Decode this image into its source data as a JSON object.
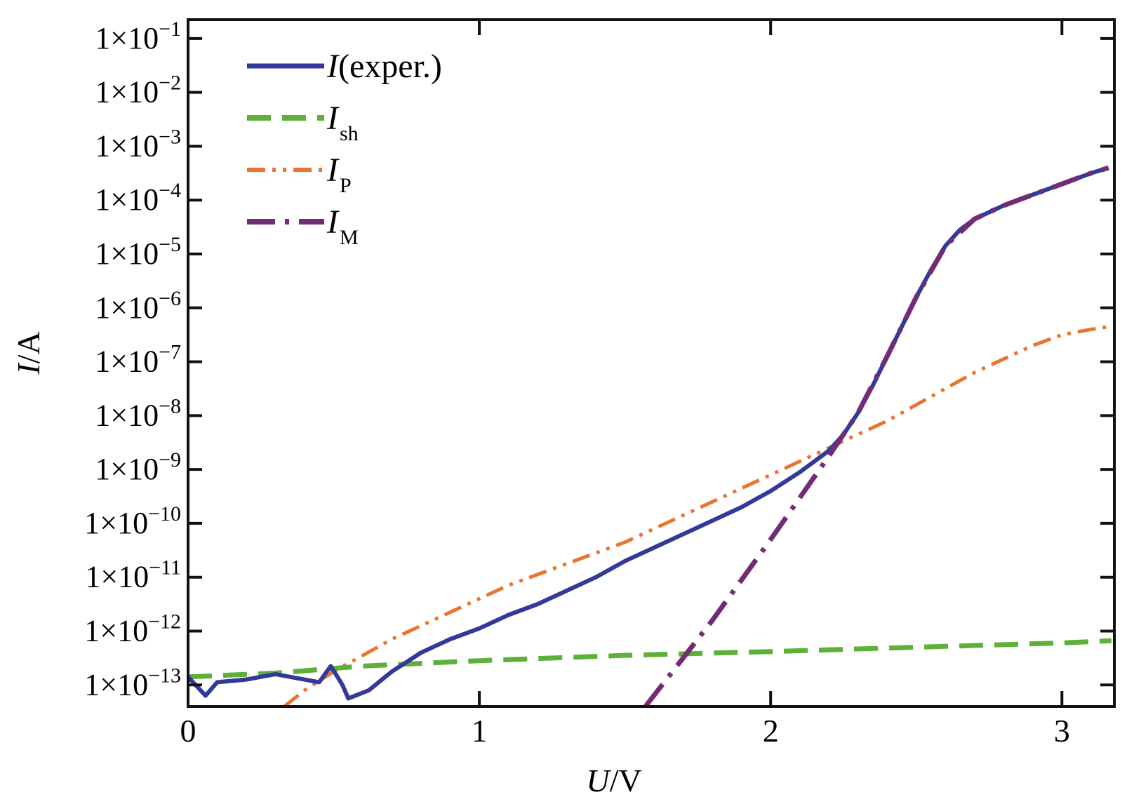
{
  "chart_data": {
    "type": "line",
    "xlabel": {
      "var": "U",
      "unit": "/V"
    },
    "ylabel": {
      "var": "I",
      "unit": "/A"
    },
    "xlim": [
      0,
      3.18
    ],
    "ylim_exp": [
      -13.4,
      -0.65
    ],
    "y_scale": "log",
    "x_ticks": [
      {
        "value": 0,
        "label": "0"
      },
      {
        "value": 1,
        "label": "1"
      },
      {
        "value": 2,
        "label": "2"
      },
      {
        "value": 3,
        "label": "3"
      }
    ],
    "y_ticks": [
      {
        "exp": -1,
        "mant": "1×10",
        "sup": "−1"
      },
      {
        "exp": -2,
        "mant": "1×10",
        "sup": "−2"
      },
      {
        "exp": -3,
        "mant": "1×10",
        "sup": "−3"
      },
      {
        "exp": -4,
        "mant": "1×10",
        "sup": "−4"
      },
      {
        "exp": -5,
        "mant": "1×10",
        "sup": "−5"
      },
      {
        "exp": -6,
        "mant": "1×10",
        "sup": "−6"
      },
      {
        "exp": -7,
        "mant": "1×10",
        "sup": "−7"
      },
      {
        "exp": -8,
        "mant": "1×10",
        "sup": "−8"
      },
      {
        "exp": -9,
        "mant": "1×10",
        "sup": "−9"
      },
      {
        "exp": -10,
        "mant": "1×10",
        "sup": "−10"
      },
      {
        "exp": -11,
        "mant": "1×10",
        "sup": "−11"
      },
      {
        "exp": -12,
        "mant": "1×10",
        "sup": "−12"
      },
      {
        "exp": -13,
        "mant": "1×10",
        "sup": "−13"
      }
    ],
    "legend_position": "top-left",
    "series": [
      {
        "key": "exper",
        "name": "I(exper.)",
        "legend_main": "I",
        "legend_rest": "(exper.)",
        "legend_sub": "",
        "color": "#33399a",
        "dash": "solid",
        "x": [
          0,
          0.06,
          0.1,
          0.2,
          0.3,
          0.45,
          0.49,
          0.53,
          0.55,
          0.62,
          0.7,
          0.8,
          0.9,
          1.0,
          1.1,
          1.2,
          1.3,
          1.4,
          1.5,
          1.6,
          1.7,
          1.8,
          1.9,
          2.0,
          2.1,
          2.2,
          2.25,
          2.3,
          2.35,
          2.4,
          2.45,
          2.5,
          2.55,
          2.6,
          2.65,
          2.7,
          2.8,
          2.9,
          3.0,
          3.1,
          3.16
        ],
        "y_exp": [
          -12.85,
          -13.2,
          -12.95,
          -12.9,
          -12.8,
          -12.95,
          -12.65,
          -13.0,
          -13.25,
          -13.1,
          -12.75,
          -12.4,
          -12.15,
          -11.95,
          -11.7,
          -11.5,
          -11.25,
          -11.0,
          -10.7,
          -10.45,
          -10.2,
          -9.95,
          -9.7,
          -9.4,
          -9.05,
          -8.65,
          -8.35,
          -7.95,
          -7.45,
          -6.9,
          -6.35,
          -5.8,
          -5.3,
          -4.85,
          -4.55,
          -4.35,
          -4.1,
          -3.9,
          -3.7,
          -3.5,
          -3.4
        ]
      },
      {
        "key": "sh",
        "name": "Ish",
        "legend_main": "I",
        "legend_rest": "",
        "legend_sub": "sh",
        "color": "#5db138",
        "dash": "dashed",
        "x": [
          0,
          0.3,
          0.6,
          1.0,
          1.5,
          2.0,
          2.5,
          3.0,
          3.17
        ],
        "y_exp": [
          -12.85,
          -12.78,
          -12.65,
          -12.55,
          -12.45,
          -12.38,
          -12.3,
          -12.22,
          -12.18
        ]
      },
      {
        "key": "P",
        "name": "IP",
        "legend_main": "I",
        "legend_rest": "",
        "legend_sub": "P",
        "color": "#ea7430",
        "dash": "dashdotdot",
        "x": [
          0.33,
          0.4,
          0.5,
          0.6,
          0.7,
          0.8,
          0.9,
          1.0,
          1.1,
          1.2,
          1.3,
          1.4,
          1.5,
          1.6,
          1.7,
          1.8,
          1.9,
          2.0,
          2.1,
          2.2,
          2.3,
          2.4,
          2.5,
          2.6,
          2.7,
          2.8,
          2.9,
          3.0,
          3.1,
          3.16
        ],
        "y_exp": [
          -13.4,
          -13.1,
          -12.75,
          -12.45,
          -12.15,
          -11.9,
          -11.65,
          -11.4,
          -11.15,
          -10.95,
          -10.75,
          -10.55,
          -10.35,
          -10.1,
          -9.85,
          -9.6,
          -9.35,
          -9.1,
          -8.85,
          -8.6,
          -8.35,
          -8.1,
          -7.8,
          -7.5,
          -7.2,
          -6.95,
          -6.7,
          -6.5,
          -6.4,
          -6.35
        ]
      },
      {
        "key": "M",
        "name": "IM",
        "legend_main": "I",
        "legend_rest": "",
        "legend_sub": "M",
        "color": "#722c75",
        "dash": "dashdot",
        "x": [
          1.57,
          1.8,
          2.0,
          2.2,
          2.3,
          2.4,
          2.5,
          2.6,
          2.7,
          2.8,
          2.9,
          3.0,
          3.1,
          3.16
        ],
        "y_exp": [
          -13.4,
          -11.8,
          -10.3,
          -8.75,
          -7.95,
          -6.9,
          -5.8,
          -4.85,
          -4.35,
          -4.1,
          -3.9,
          -3.7,
          -3.5,
          -3.4
        ]
      }
    ]
  }
}
